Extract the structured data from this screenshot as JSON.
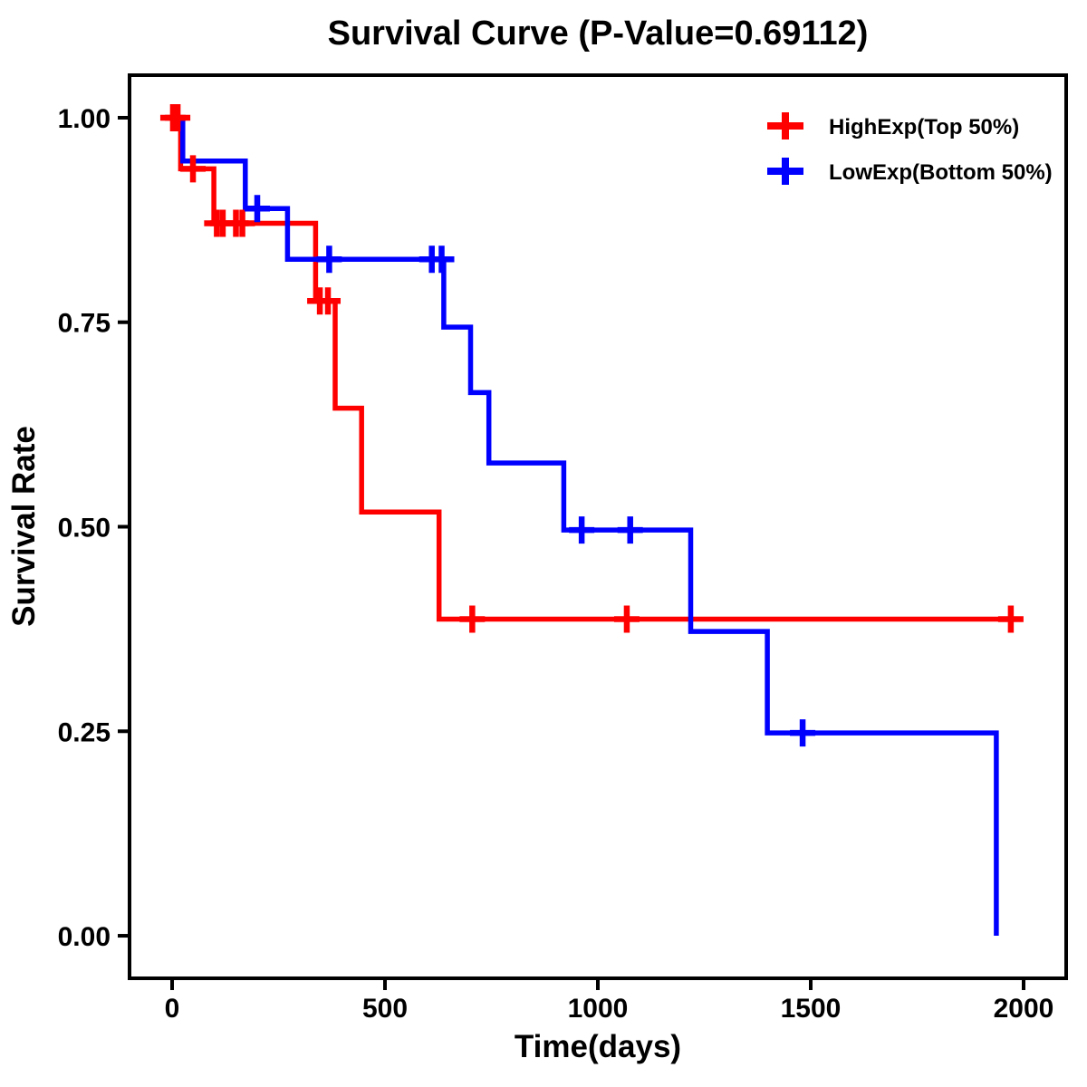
{
  "page": {
    "p_value": "0.69112"
  },
  "chart_data": {
    "type": "line",
    "subtype": "kaplan-meier-step-survival",
    "title": "Survival Curve (P-Value=0.69112)",
    "xlabel": "Time(days)",
    "ylabel": "Survival Rate",
    "x_ticks": [
      0,
      500,
      1000,
      1500,
      2000
    ],
    "y_ticks": [
      "0.00",
      "0.25",
      "0.50",
      "0.75",
      "1.00"
    ],
    "xlim": [
      -100,
      2100
    ],
    "ylim": [
      -0.052,
      1.052
    ],
    "grid": false,
    "frame": true,
    "legend_position": "top-right",
    "axis_color": "#000000",
    "background_color": "#ffffff",
    "series": [
      {
        "name": "HighExp(Top 50%)",
        "color": "#FF0000",
        "end_time": 1975,
        "steps": [
          [
            0,
            1.0
          ],
          [
            20,
            0.9375
          ],
          [
            98,
            0.871
          ],
          [
            337,
            0.776
          ],
          [
            383,
            0.645
          ],
          [
            445,
            0.518
          ],
          [
            627,
            0.387
          ]
        ],
        "censors": [
          [
            2,
            1.0
          ],
          [
            13,
            1.0
          ],
          [
            49,
            0.9375
          ],
          [
            105,
            0.871
          ],
          [
            119,
            0.871
          ],
          [
            150,
            0.871
          ],
          [
            165,
            0.871
          ],
          [
            347,
            0.776
          ],
          [
            366,
            0.776
          ],
          [
            705,
            0.387
          ],
          [
            1068,
            0.387
          ],
          [
            1970,
            0.387
          ]
        ]
      },
      {
        "name": "LowExp(Bottom 50%)",
        "color": "#0000FF",
        "end_time": 1936,
        "steps": [
          [
            0,
            1.0
          ],
          [
            25,
            0.947
          ],
          [
            172,
            0.889
          ],
          [
            271,
            0.827
          ],
          [
            638,
            0.744
          ],
          [
            701,
            0.664
          ],
          [
            744,
            0.578
          ],
          [
            920,
            0.496
          ],
          [
            1218,
            0.372
          ],
          [
            1398,
            0.248
          ],
          [
            1936,
            0.0
          ]
        ],
        "censors": [
          [
            200,
            0.889
          ],
          [
            369,
            0.827
          ],
          [
            610,
            0.827
          ],
          [
            633,
            0.827
          ],
          [
            962,
            0.496
          ],
          [
            1076,
            0.496
          ],
          [
            1481,
            0.248
          ]
        ]
      }
    ]
  }
}
